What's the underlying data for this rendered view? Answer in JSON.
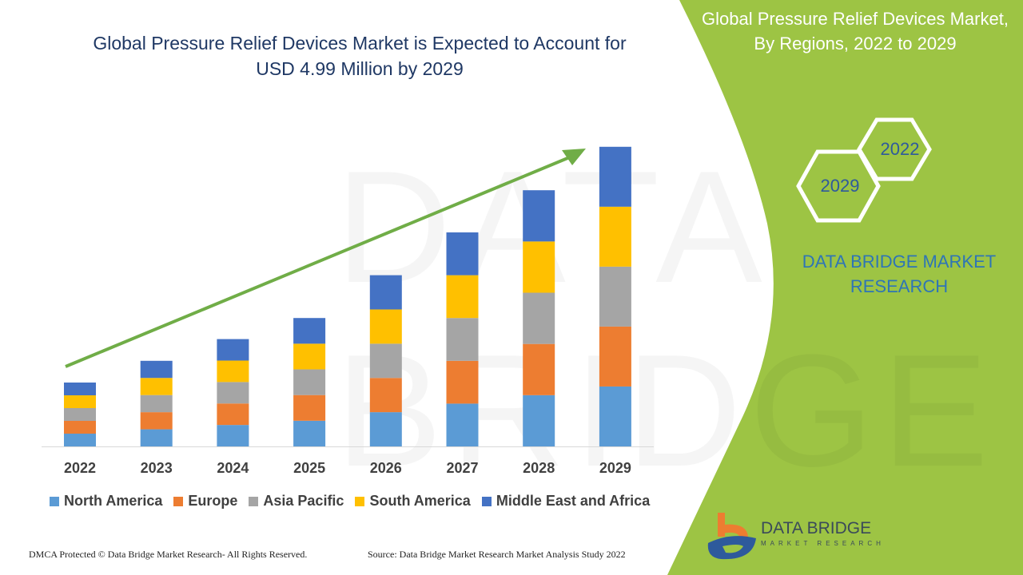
{
  "header": {
    "title_line1": "Global Pressure Relief Devices Market is Expected to Account for",
    "title_line2": "USD 4.99 Million by 2029"
  },
  "side_panel": {
    "title_line1": "Global Pressure Relief Devices Market,",
    "title_line2": "By Regions, 2022 to 2029",
    "hex_years": [
      "2022",
      "2029"
    ],
    "brand_line1": "DATA BRIDGE MARKET",
    "brand_line2": "RESEARCH",
    "logo_text": "DATA BRIDGE",
    "logo_subtext": "MARKET RESEARCH",
    "background_color": "#9dc444"
  },
  "watermark": "DATA BRIDGE",
  "footer": {
    "copyright": "DMCA Protected © Data Bridge Market Research- All Rights Reserved.",
    "source": "Source: Data Bridge Market Research Market Analysis Study 2022"
  },
  "chart_data": {
    "type": "bar",
    "stacked": true,
    "title": "",
    "xlabel": "",
    "ylabel": "",
    "y_axis_shown": false,
    "grid": false,
    "legend_position": "bottom",
    "trend_arrow": true,
    "categories": [
      "2022",
      "2023",
      "2024",
      "2025",
      "2026",
      "2027",
      "2028",
      "2029"
    ],
    "series": [
      {
        "name": "North America",
        "color": "#5b9bd5",
        "values": [
          1.0,
          1.34,
          1.68,
          2.01,
          2.68,
          3.35,
          4.01,
          4.69
        ]
      },
      {
        "name": "Europe",
        "color": "#ed7d31",
        "values": [
          1.0,
          1.34,
          1.68,
          2.01,
          2.68,
          3.35,
          4.01,
          4.69
        ]
      },
      {
        "name": "Asia Pacific",
        "color": "#a5a5a5",
        "values": [
          1.0,
          1.34,
          1.68,
          2.01,
          2.68,
          3.35,
          4.01,
          4.69
        ]
      },
      {
        "name": "South America",
        "color": "#ffc000",
        "values": [
          1.0,
          1.34,
          1.68,
          2.01,
          2.68,
          3.35,
          4.01,
          4.69
        ]
      },
      {
        "name": "Middle East and Africa",
        "color": "#4472c4",
        "values": [
          1.0,
          1.34,
          1.68,
          2.01,
          2.68,
          3.35,
          4.01,
          4.69
        ]
      }
    ],
    "arrow_color": "#70ad47"
  }
}
